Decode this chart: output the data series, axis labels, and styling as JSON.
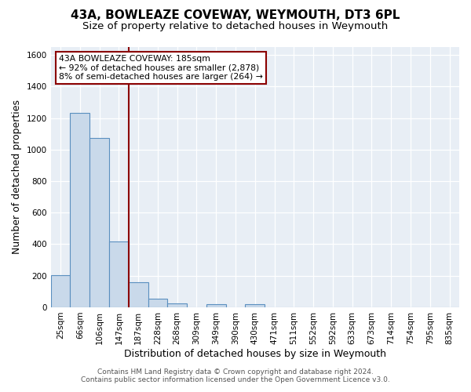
{
  "title": "43A, BOWLEAZE COVEWAY, WEYMOUTH, DT3 6PL",
  "subtitle": "Size of property relative to detached houses in Weymouth",
  "xlabel": "Distribution of detached houses by size in Weymouth",
  "ylabel": "Number of detached properties",
  "bin_labels": [
    "25sqm",
    "66sqm",
    "106sqm",
    "147sqm",
    "187sqm",
    "228sqm",
    "268sqm",
    "309sqm",
    "349sqm",
    "390sqm",
    "430sqm",
    "471sqm",
    "511sqm",
    "552sqm",
    "592sqm",
    "633sqm",
    "673sqm",
    "714sqm",
    "754sqm",
    "795sqm",
    "835sqm"
  ],
  "bin_values": [
    205,
    1230,
    1075,
    415,
    160,
    52,
    25,
    0,
    20,
    0,
    20,
    0,
    0,
    0,
    0,
    0,
    0,
    0,
    0,
    0,
    0
  ],
  "bar_color": "#c9d9ea",
  "bar_edge_color": "#5a8fbf",
  "vline_color": "#8b0000",
  "annotation_title": "43A BOWLEAZE COVEWAY: 185sqm",
  "annotation_line1": "← 92% of detached houses are smaller (2,878)",
  "annotation_line2": "8% of semi-detached houses are larger (264) →",
  "annotation_box_facecolor": "#ffffff",
  "annotation_box_edgecolor": "#8b0000",
  "ylim": [
    0,
    1650
  ],
  "yticks": [
    0,
    200,
    400,
    600,
    800,
    1000,
    1200,
    1400,
    1600
  ],
  "footer1": "Contains HM Land Registry data © Crown copyright and database right 2024.",
  "footer2": "Contains public sector information licensed under the Open Government Licence v3.0.",
  "fig_bg_color": "#ffffff",
  "plot_bg_color": "#e8eef5",
  "grid_color": "#ffffff",
  "title_fontsize": 11,
  "subtitle_fontsize": 9.5,
  "axis_label_fontsize": 9,
  "tick_fontsize": 7.5,
  "footer_fontsize": 6.5,
  "annotation_fontsize": 7.8
}
